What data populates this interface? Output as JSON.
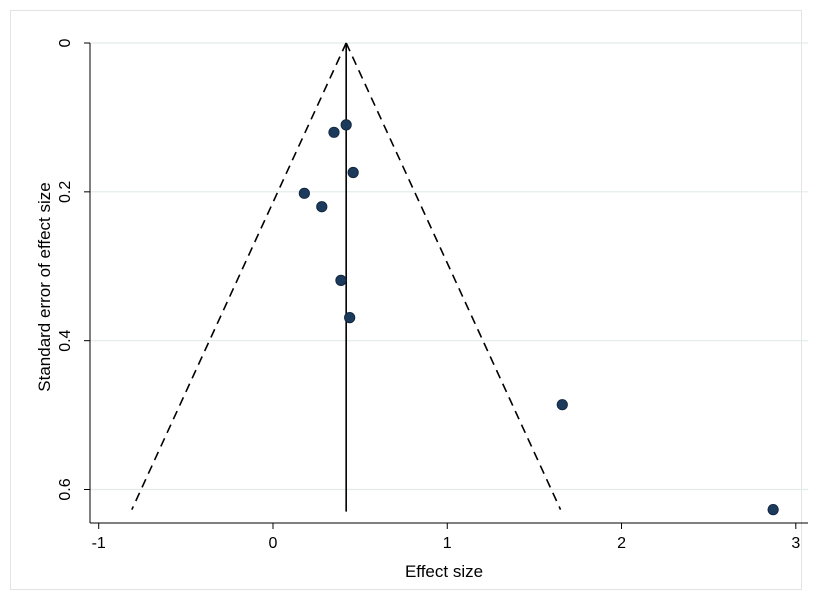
{
  "chart_data": {
    "type": "scatter",
    "xlabel": "Effect size",
    "ylabel": "Standard error of effect size",
    "xlim": [
      -1.05,
      3.07
    ],
    "ylim": [
      0,
      0.645
    ],
    "y_reversed": true,
    "x_ticks": [
      -1,
      0,
      1,
      2,
      3
    ],
    "y_ticks": [
      0,
      0.2,
      0.4,
      0.6
    ],
    "grid": "horizontal",
    "pooled_effect": 0.42,
    "funnel": {
      "apex": [
        0.42,
        0
      ],
      "left_end": [
        -0.81,
        0.627
      ],
      "right_end": [
        1.65,
        0.627
      ]
    },
    "points": [
      {
        "x": 0.42,
        "y": 0.11
      },
      {
        "x": 0.35,
        "y": 0.12
      },
      {
        "x": 0.46,
        "y": 0.174
      },
      {
        "x": 0.18,
        "y": 0.202
      },
      {
        "x": 0.28,
        "y": 0.22
      },
      {
        "x": 0.39,
        "y": 0.319
      },
      {
        "x": 0.44,
        "y": 0.369
      },
      {
        "x": 1.66,
        "y": 0.486
      },
      {
        "x": 2.87,
        "y": 0.627
      }
    ],
    "colors": {
      "point": "#1b3a5c",
      "grid": "#e1ece9",
      "line": "#000000"
    }
  }
}
